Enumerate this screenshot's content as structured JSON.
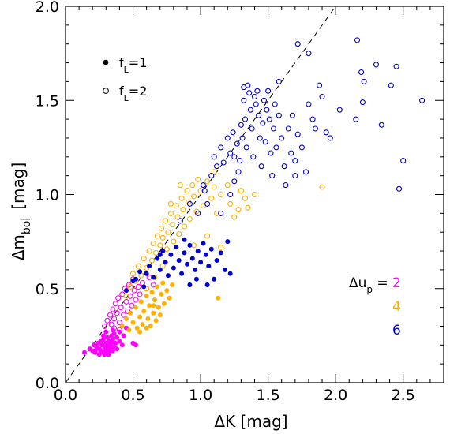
{
  "chart_data": {
    "type": "scatter",
    "title": "",
    "xlabel": "ΔK [mag]",
    "ylabel": "Δm_bol [mag]",
    "xlim": [
      0.0,
      2.8
    ],
    "ylim": [
      0.0,
      2.0
    ],
    "xticks": [
      "0.0",
      "0.5",
      "1.0",
      "1.5",
      "2.0",
      "2.5"
    ],
    "yticks": [
      "0.0",
      "0.5",
      "1.0",
      "1.5",
      "2.0"
    ],
    "reference_line": {
      "style": "dashed",
      "x": [
        0.0,
        2.0
      ],
      "y": [
        0.0,
        2.0
      ]
    },
    "marker_legend": {
      "position": "top-left",
      "items": [
        {
          "marker": "filled",
          "label": "f",
          "subscript": "L",
          "value": "=1"
        },
        {
          "marker": "open",
          "label": "f",
          "subscript": "L",
          "value": "=2"
        }
      ]
    },
    "color_legend": {
      "position": "bottom-right",
      "title": "Δu",
      "title_subscript": "p",
      "title_suffix": " =",
      "items": [
        {
          "value": "2",
          "color": "#ff00ff"
        },
        {
          "value": "4",
          "color": "#ffb000"
        },
        {
          "value": "6",
          "color": "#0000cc"
        }
      ]
    },
    "series": [
      {
        "du": "2",
        "fL": "1",
        "color": "#ff00ff",
        "marker": "filled",
        "points": [
          [
            0.14,
            0.16
          ],
          [
            0.18,
            0.18
          ],
          [
            0.2,
            0.17
          ],
          [
            0.21,
            0.2
          ],
          [
            0.22,
            0.16
          ],
          [
            0.23,
            0.19
          ],
          [
            0.24,
            0.21
          ],
          [
            0.25,
            0.15
          ],
          [
            0.25,
            0.18
          ],
          [
            0.26,
            0.22
          ],
          [
            0.27,
            0.17
          ],
          [
            0.27,
            0.2
          ],
          [
            0.28,
            0.23
          ],
          [
            0.29,
            0.15
          ],
          [
            0.29,
            0.19
          ],
          [
            0.3,
            0.21
          ],
          [
            0.3,
            0.17
          ],
          [
            0.31,
            0.24
          ],
          [
            0.31,
            0.19
          ],
          [
            0.32,
            0.16
          ],
          [
            0.32,
            0.22
          ],
          [
            0.33,
            0.2
          ],
          [
            0.33,
            0.18
          ],
          [
            0.34,
            0.25
          ],
          [
            0.34,
            0.21
          ],
          [
            0.35,
            0.17
          ],
          [
            0.35,
            0.23
          ],
          [
            0.36,
            0.19
          ],
          [
            0.36,
            0.26
          ],
          [
            0.37,
            0.21
          ],
          [
            0.38,
            0.24
          ],
          [
            0.38,
            0.18
          ],
          [
            0.4,
            0.22
          ],
          [
            0.4,
            0.27
          ],
          [
            0.42,
            0.2
          ],
          [
            0.43,
            0.25
          ],
          [
            0.45,
            0.29
          ],
          [
            0.5,
            0.21
          ],
          [
            0.52,
            0.2
          ],
          [
            0.22,
            0.17
          ],
          [
            0.26,
            0.16
          ],
          [
            0.28,
            0.25
          ],
          [
            0.3,
            0.27
          ],
          [
            0.32,
            0.15
          ],
          [
            0.35,
            0.28
          ]
        ]
      },
      {
        "du": "2",
        "fL": "2",
        "color": "#ff00ff",
        "marker": "open",
        "points": [
          [
            0.29,
            0.3
          ],
          [
            0.31,
            0.33
          ],
          [
            0.33,
            0.36
          ],
          [
            0.34,
            0.31
          ],
          [
            0.35,
            0.39
          ],
          [
            0.36,
            0.34
          ],
          [
            0.37,
            0.42
          ],
          [
            0.38,
            0.37
          ],
          [
            0.39,
            0.45
          ],
          [
            0.4,
            0.32
          ],
          [
            0.41,
            0.4
          ],
          [
            0.42,
            0.47
          ],
          [
            0.43,
            0.36
          ],
          [
            0.44,
            0.5
          ],
          [
            0.45,
            0.43
          ],
          [
            0.46,
            0.38
          ],
          [
            0.47,
            0.52
          ],
          [
            0.48,
            0.46
          ],
          [
            0.49,
            0.41
          ],
          [
            0.5,
            0.55
          ],
          [
            0.51,
            0.49
          ],
          [
            0.52,
            0.44
          ],
          [
            0.54,
            0.51
          ],
          [
            0.55,
            0.47
          ],
          [
            0.57,
            0.53
          ],
          [
            0.6,
            0.5
          ],
          [
            0.62,
            0.56
          ],
          [
            0.65,
            0.52
          ],
          [
            0.36,
            0.29
          ],
          [
            0.4,
            0.28
          ]
        ]
      },
      {
        "du": "4",
        "fL": "1",
        "color": "#ffb000",
        "marker": "filled",
        "points": [
          [
            0.42,
            0.3
          ],
          [
            0.45,
            0.34
          ],
          [
            0.47,
            0.28
          ],
          [
            0.48,
            0.37
          ],
          [
            0.5,
            0.32
          ],
          [
            0.52,
            0.4
          ],
          [
            0.53,
            0.29
          ],
          [
            0.55,
            0.35
          ],
          [
            0.56,
            0.43
          ],
          [
            0.57,
            0.31
          ],
          [
            0.58,
            0.38
          ],
          [
            0.6,
            0.46
          ],
          [
            0.61,
            0.34
          ],
          [
            0.62,
            0.41
          ],
          [
            0.63,
            0.3
          ],
          [
            0.64,
            0.48
          ],
          [
            0.65,
            0.37
          ],
          [
            0.66,
            0.44
          ],
          [
            0.67,
            0.33
          ],
          [
            0.68,
            0.51
          ],
          [
            0.69,
            0.4
          ],
          [
            0.7,
            0.36
          ],
          [
            0.71,
            0.47
          ],
          [
            0.72,
            0.53
          ],
          [
            0.73,
            0.42
          ],
          [
            0.75,
            0.49
          ],
          [
            0.77,
            0.45
          ],
          [
            0.79,
            0.52
          ],
          [
            0.55,
            0.27
          ],
          [
            0.6,
            0.29
          ],
          [
            0.65,
            0.41
          ],
          [
            1.13,
            0.45
          ]
        ]
      },
      {
        "du": "4",
        "fL": "2",
        "color": "#ffb000",
        "marker": "open",
        "points": [
          [
            0.45,
            0.46
          ],
          [
            0.48,
            0.51
          ],
          [
            0.5,
            0.58
          ],
          [
            0.52,
            0.54
          ],
          [
            0.54,
            0.62
          ],
          [
            0.56,
            0.57
          ],
          [
            0.58,
            0.66
          ],
          [
            0.6,
            0.61
          ],
          [
            0.62,
            0.7
          ],
          [
            0.64,
            0.65
          ],
          [
            0.65,
            0.74
          ],
          [
            0.67,
            0.69
          ],
          [
            0.68,
            0.78
          ],
          [
            0.7,
            0.73
          ],
          [
            0.71,
            0.82
          ],
          [
            0.72,
            0.77
          ],
          [
            0.74,
            0.86
          ],
          [
            0.75,
            0.71
          ],
          [
            0.76,
            0.8
          ],
          [
            0.78,
            0.9
          ],
          [
            0.79,
            0.84
          ],
          [
            0.8,
            0.75
          ],
          [
            0.82,
            0.94
          ],
          [
            0.83,
            0.88
          ],
          [
            0.84,
            0.79
          ],
          [
            0.86,
            0.98
          ],
          [
            0.87,
            0.92
          ],
          [
            0.88,
            0.83
          ],
          [
            0.9,
            1.02
          ],
          [
            0.91,
            0.96
          ],
          [
            0.92,
            0.87
          ],
          [
            0.94,
            1.05
          ],
          [
            0.95,
            0.99
          ],
          [
            0.97,
            0.91
          ],
          [
            0.98,
            1.08
          ],
          [
            1.0,
            1.02
          ],
          [
            1.02,
            0.94
          ],
          [
            1.05,
            1.07
          ],
          [
            1.08,
            0.98
          ],
          [
            1.1,
            1.04
          ],
          [
            1.12,
            0.9
          ],
          [
            1.15,
            1.0
          ],
          [
            1.2,
            1.05
          ],
          [
            1.22,
            0.95
          ],
          [
            1.25,
            0.88
          ],
          [
            1.28,
            0.92
          ],
          [
            1.3,
            1.02
          ],
          [
            1.33,
            0.98
          ],
          [
            1.4,
            1.0
          ],
          [
            1.9,
            1.04
          ],
          [
            0.85,
            1.05
          ],
          [
            0.78,
            0.95
          ],
          [
            0.95,
            0.73
          ],
          [
            1.05,
            0.78
          ],
          [
            1.15,
            0.72
          ],
          [
            0.72,
            0.62
          ],
          [
            0.66,
            0.56
          ],
          [
            0.6,
            0.5
          ],
          [
            1.1,
            1.12
          ],
          [
            1.35,
            0.93
          ]
        ]
      },
      {
        "du": "6",
        "fL": "1",
        "color": "#0000cc",
        "marker": "filled",
        "points": [
          [
            0.45,
            0.49
          ],
          [
            0.5,
            0.54
          ],
          [
            0.55,
            0.59
          ],
          [
            0.58,
            0.51
          ],
          [
            0.62,
            0.62
          ],
          [
            0.65,
            0.56
          ],
          [
            0.68,
            0.66
          ],
          [
            0.7,
            0.6
          ],
          [
            0.72,
            0.7
          ],
          [
            0.74,
            0.64
          ],
          [
            0.76,
            0.57
          ],
          [
            0.78,
            0.68
          ],
          [
            0.8,
            0.61
          ],
          [
            0.82,
            0.72
          ],
          [
            0.84,
            0.65
          ],
          [
            0.86,
            0.58
          ],
          [
            0.88,
            0.69
          ],
          [
            0.9,
            0.63
          ],
          [
            0.92,
            0.73
          ],
          [
            0.94,
            0.66
          ],
          [
            0.96,
            0.6
          ],
          [
            0.98,
            0.7
          ],
          [
            1.0,
            0.64
          ],
          [
            1.02,
            0.74
          ],
          [
            1.04,
            0.68
          ],
          [
            1.06,
            0.62
          ],
          [
            1.08,
            0.71
          ],
          [
            1.1,
            0.55
          ],
          [
            1.12,
            0.65
          ],
          [
            1.15,
            0.69
          ],
          [
            1.18,
            0.6
          ],
          [
            1.2,
            0.75
          ],
          [
            1.22,
            0.58
          ],
          [
            0.88,
            0.76
          ],
          [
            0.92,
            0.52
          ],
          [
            0.97,
            0.55
          ],
          [
            1.05,
            0.52
          ],
          [
            0.7,
            0.68
          ],
          [
            0.6,
            0.58
          ],
          [
            0.52,
            0.55
          ]
        ]
      },
      {
        "du": "6",
        "fL": "2",
        "color": "#0000cc",
        "marker": "open",
        "points": [
          [
            0.85,
            0.86
          ],
          [
            0.92,
            0.95
          ],
          [
            0.98,
            0.9
          ],
          [
            1.03,
            1.02
          ],
          [
            1.08,
            1.1
          ],
          [
            1.1,
            1.2
          ],
          [
            1.12,
            1.15
          ],
          [
            1.15,
            1.25
          ],
          [
            1.17,
            1.17
          ],
          [
            1.2,
            1.3
          ],
          [
            1.22,
            1.22
          ],
          [
            1.24,
            1.33
          ],
          [
            1.25,
            1.07
          ],
          [
            1.27,
            1.27
          ],
          [
            1.29,
            1.18
          ],
          [
            1.3,
            1.37
          ],
          [
            1.31,
            1.3
          ],
          [
            1.32,
            1.5
          ],
          [
            1.33,
            1.4
          ],
          [
            1.34,
            1.25
          ],
          [
            1.35,
            1.58
          ],
          [
            1.36,
            1.54
          ],
          [
            1.37,
            1.45
          ],
          [
            1.38,
            1.35
          ],
          [
            1.39,
            1.2
          ],
          [
            1.4,
            1.52
          ],
          [
            1.41,
            1.48
          ],
          [
            1.42,
            1.55
          ],
          [
            1.43,
            1.42
          ],
          [
            1.44,
            1.3
          ],
          [
            1.45,
            1.15
          ],
          [
            1.46,
            1.38
          ],
          [
            1.47,
            1.5
          ],
          [
            1.48,
            1.28
          ],
          [
            1.49,
            1.45
          ],
          [
            1.5,
            1.55
          ],
          [
            1.51,
            1.4
          ],
          [
            1.52,
            1.22
          ],
          [
            1.53,
            1.1
          ],
          [
            1.54,
            1.35
          ],
          [
            1.55,
            1.48
          ],
          [
            1.56,
            1.25
          ],
          [
            1.58,
            1.42
          ],
          [
            1.6,
            1.3
          ],
          [
            1.62,
            1.15
          ],
          [
            1.63,
            1.05
          ],
          [
            1.65,
            1.35
          ],
          [
            1.67,
            1.22
          ],
          [
            1.68,
            1.42
          ],
          [
            1.7,
            1.18
          ],
          [
            1.72,
            1.32
          ],
          [
            1.75,
            1.25
          ],
          [
            1.78,
            1.12
          ],
          [
            1.8,
            1.48
          ],
          [
            1.83,
            1.4
          ],
          [
            1.85,
            1.35
          ],
          [
            1.88,
            1.58
          ],
          [
            1.9,
            1.52
          ],
          [
            1.93,
            1.33
          ],
          [
            1.96,
            1.3
          ],
          [
            1.72,
            1.8
          ],
          [
            1.8,
            1.75
          ],
          [
            2.03,
            1.45
          ],
          [
            2.15,
            1.4
          ],
          [
            2.16,
            1.82
          ],
          [
            2.19,
            1.65
          ],
          [
            2.21,
            1.6
          ],
          [
            2.2,
            1.49
          ],
          [
            2.3,
            1.69
          ],
          [
            2.34,
            1.37
          ],
          [
            2.41,
            1.58
          ],
          [
            2.45,
            1.68
          ],
          [
            2.47,
            1.03
          ],
          [
            2.5,
            1.18
          ],
          [
            2.64,
            1.5
          ],
          [
            1.02,
            1.05
          ],
          [
            1.05,
            0.95
          ],
          [
            1.15,
            0.9
          ],
          [
            1.25,
            1.2
          ],
          [
            1.28,
            1.12
          ],
          [
            1.22,
            1.0
          ],
          [
            1.32,
            1.57
          ],
          [
            1.58,
            1.6
          ],
          [
            1.7,
            1.1
          ]
        ]
      }
    ]
  }
}
